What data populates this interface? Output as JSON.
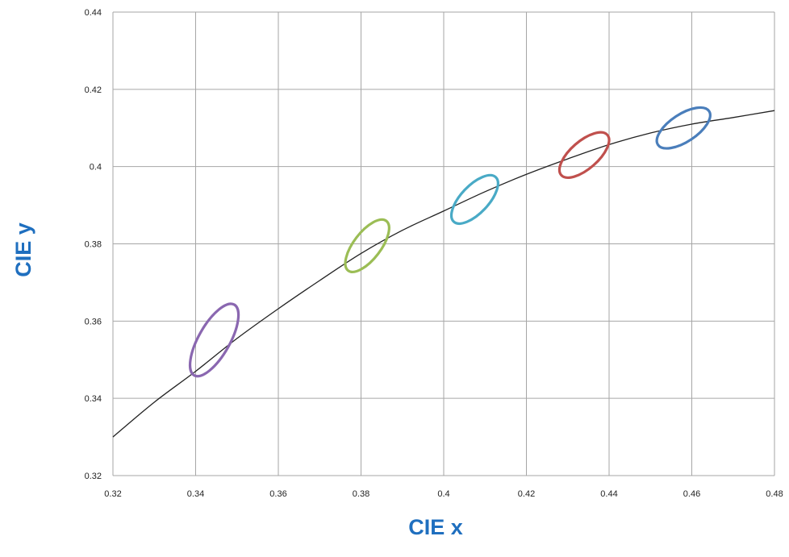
{
  "chart_data": {
    "type": "line",
    "title": "",
    "xlabel": "CIE x",
    "ylabel": "CIE y",
    "xlim": [
      0.32,
      0.48
    ],
    "ylim": [
      0.32,
      0.44
    ],
    "grid": true,
    "axis_title_color": "#1f6fbf",
    "x_ticks": [
      "0.32",
      "0.34",
      "0.36",
      "0.38",
      "0.4",
      "0.42",
      "0.44",
      "0.46",
      "0.48"
    ],
    "y_ticks": [
      "0.32",
      "0.34",
      "0.36",
      "0.38",
      "0.4",
      "0.42",
      "0.44"
    ],
    "series": [
      {
        "color": "#222222",
        "x": [
          0.32,
          0.33,
          0.34,
          0.35,
          0.36,
          0.37,
          0.38,
          0.39,
          0.4,
          0.41,
          0.42,
          0.43,
          0.44,
          0.45,
          0.46,
          0.47,
          0.48
        ],
        "y": [
          0.33,
          0.339,
          0.347,
          0.3555,
          0.3632,
          0.3705,
          0.3775,
          0.3835,
          0.3885,
          0.3935,
          0.398,
          0.402,
          0.4057,
          0.4087,
          0.411,
          0.4127,
          0.4145
        ]
      }
    ],
    "ellipses": [
      {
        "color": "#8a67b0",
        "center": [
          0.3445,
          0.3551
        ],
        "semi_major": 0.0136,
        "semi_minor": 0.0042
      },
      {
        "color": "#9bbd55",
        "center": [
          0.3815,
          0.3795
        ],
        "semi_major": 0.0097,
        "semi_minor": 0.0034
      },
      {
        "color": "#49aac6",
        "center": [
          0.4075,
          0.3915
        ],
        "semi_major": 0.0094,
        "semi_minor": 0.0035
      },
      {
        "color": "#c0504d",
        "center": [
          0.434,
          0.403
        ],
        "semi_major": 0.0094,
        "semi_minor": 0.0035
      },
      {
        "color": "#4a7ebb",
        "center": [
          0.458,
          0.41
        ],
        "semi_major": 0.0094,
        "semi_minor": 0.0035
      }
    ]
  }
}
